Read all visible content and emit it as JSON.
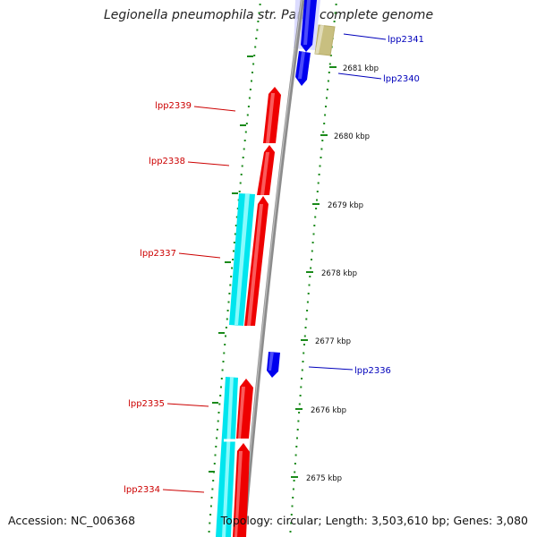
{
  "title": "Legionella pneumophila str. Paris, complete genome",
  "footer": {
    "accession": "Accession: NC_006368",
    "summary": "Topology: circular; Length: 3,503,610 bp; Genes: 3,080"
  },
  "colors": {
    "backbone": "#8c8c8c",
    "tick": "#1a8a1a",
    "forward_gene": "#ee0000",
    "reverse_gene": "#0000ee",
    "cyan_feature": "#00e5ee",
    "olive_feature": "#c8bf80",
    "forward_label": "#cc0000",
    "reverse_label": "#0000bb"
  },
  "ticks": [
    {
      "label": "2681 kbp"
    },
    {
      "label": "2680 kbp"
    },
    {
      "label": "2679 kbp"
    },
    {
      "label": "2678 kbp"
    },
    {
      "label": "2677 kbp"
    },
    {
      "label": "2676 kbp"
    },
    {
      "label": "2675 kbp"
    }
  ],
  "genes": [
    {
      "label": "lpp2341",
      "strand": "reverse"
    },
    {
      "label": "lpp2340",
      "strand": "reverse"
    },
    {
      "label": "lpp2339",
      "strand": "forward"
    },
    {
      "label": "lpp2338",
      "strand": "forward"
    },
    {
      "label": "lpp2337",
      "strand": "forward"
    },
    {
      "label": "lpp2336",
      "strand": "reverse"
    },
    {
      "label": "lpp2335",
      "strand": "forward"
    },
    {
      "label": "lpp2334",
      "strand": "forward"
    }
  ]
}
